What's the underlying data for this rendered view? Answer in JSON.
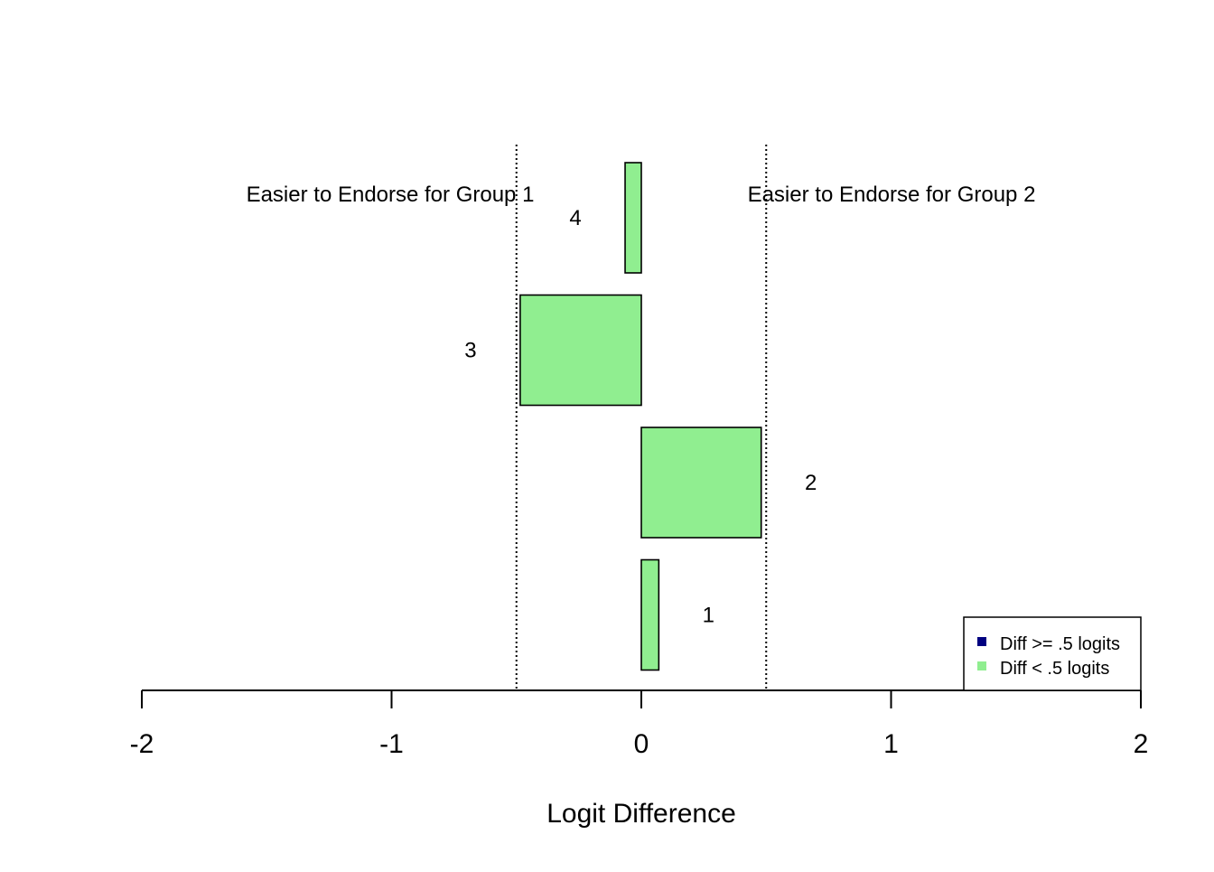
{
  "chart_data": {
    "type": "bar",
    "orientation": "horizontal",
    "title": "",
    "xlabel": "Logit Difference",
    "ylabel": "",
    "xlim": [
      -2,
      2
    ],
    "x_ticks": [
      -2,
      -1,
      0,
      1,
      2
    ],
    "x_tick_labels": [
      "-2",
      "-1",
      "0",
      "1",
      "2"
    ],
    "categories": [
      "1",
      "2",
      "3",
      "4"
    ],
    "values": [
      0.07,
      0.48,
      -0.485,
      -0.065
    ],
    "bar_colors": [
      "#90ee90",
      "#90ee90",
      "#90ee90",
      "#90ee90"
    ],
    "reference_lines": [
      -0.5,
      0.5
    ],
    "reference_line_style": "dotted",
    "annotations": [
      {
        "text": "Easier to Endorse for Group 1",
        "side": "left"
      },
      {
        "text": "Easier to Endorse for Group 2",
        "side": "right"
      }
    ],
    "legend": {
      "placement": "bottom-right",
      "entries": [
        {
          "label": "Diff >= .5 logits",
          "color": "#000080"
        },
        {
          "label": "Diff < .5 logits",
          "color": "#90ee90"
        }
      ]
    },
    "grid": false
  }
}
